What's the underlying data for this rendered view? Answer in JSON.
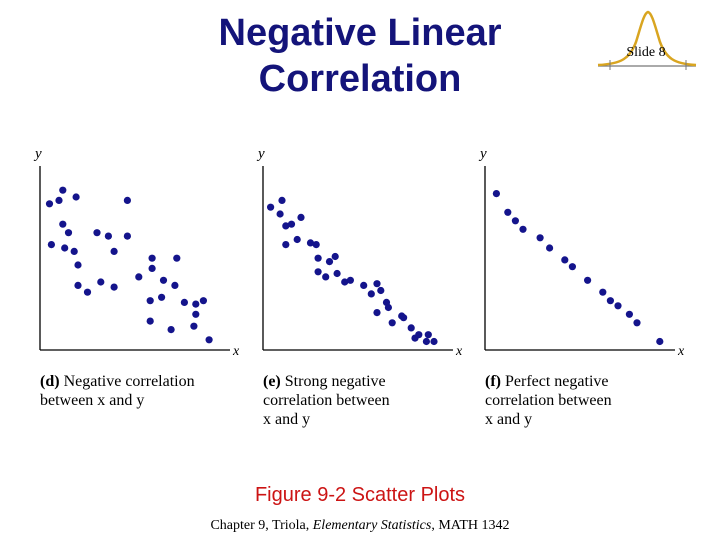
{
  "slide": {
    "title_line1": "Negative Linear",
    "title_line2": "Correlation",
    "badge_label": "Slide 8",
    "figure_caption": "Figure 9-2   Scatter Plots",
    "footer_prefix": "Chapter 9, Triola, ",
    "footer_book": "Elementary Statistics",
    "footer_suffix": ", MATH 1342"
  },
  "colors": {
    "title": "#14147a",
    "dots": "#14148c",
    "caption": "#cc1414",
    "badge_curve": "#d9a520"
  },
  "panels": [
    {
      "tag": "(d)",
      "caption_line1": "Negative correlation",
      "caption_line2": "between x and y",
      "caption_line3": ""
    },
    {
      "tag": "(e)",
      "caption_line1": "Strong negative",
      "caption_line2": "correlation between",
      "caption_line3": "x and y"
    },
    {
      "tag": "(f)",
      "caption_line1": "Perfect negative",
      "caption_line2": "correlation between",
      "caption_line3": "x and y"
    }
  ],
  "chart_data": [
    {
      "type": "scatter",
      "title": "",
      "xlabel": "x",
      "ylabel": "y",
      "xlim": [
        0,
        10
      ],
      "ylim": [
        0,
        10
      ],
      "points": [
        [
          0.5,
          8.6
        ],
        [
          1.0,
          8.8
        ],
        [
          1.2,
          9.4
        ],
        [
          1.9,
          9.0
        ],
        [
          0.6,
          6.2
        ],
        [
          1.2,
          7.4
        ],
        [
          1.5,
          6.9
        ],
        [
          1.3,
          6.0
        ],
        [
          1.8,
          5.8
        ],
        [
          2.0,
          5.0
        ],
        [
          3.0,
          6.9
        ],
        [
          3.6,
          6.7
        ],
        [
          4.6,
          8.8
        ],
        [
          4.6,
          6.7
        ],
        [
          3.9,
          5.8
        ],
        [
          2.0,
          3.8
        ],
        [
          3.2,
          4.0
        ],
        [
          2.5,
          3.4
        ],
        [
          3.9,
          3.7
        ],
        [
          5.9,
          4.8
        ],
        [
          5.9,
          5.4
        ],
        [
          7.2,
          5.4
        ],
        [
          5.2,
          4.3
        ],
        [
          6.5,
          4.1
        ],
        [
          7.1,
          3.8
        ],
        [
          5.8,
          2.9
        ],
        [
          6.4,
          3.1
        ],
        [
          7.6,
          2.8
        ],
        [
          8.2,
          2.7
        ],
        [
          8.6,
          2.9
        ],
        [
          5.8,
          1.7
        ],
        [
          8.1,
          1.4
        ],
        [
          6.9,
          1.2
        ],
        [
          8.2,
          2.1
        ],
        [
          8.9,
          0.6
        ]
      ]
    },
    {
      "type": "scatter",
      "title": "",
      "xlabel": "x",
      "ylabel": "y",
      "xlim": [
        0,
        10
      ],
      "ylim": [
        0,
        10
      ],
      "points": [
        [
          0.4,
          8.4
        ],
        [
          0.9,
          8.0
        ],
        [
          1.0,
          8.8
        ],
        [
          1.2,
          7.3
        ],
        [
          1.5,
          7.4
        ],
        [
          1.2,
          6.2
        ],
        [
          1.8,
          6.5
        ],
        [
          2.0,
          7.8
        ],
        [
          2.8,
          6.2
        ],
        [
          2.5,
          6.3
        ],
        [
          2.9,
          5.4
        ],
        [
          3.5,
          5.2
        ],
        [
          2.9,
          4.6
        ],
        [
          3.3,
          4.3
        ],
        [
          3.9,
          4.5
        ],
        [
          3.8,
          5.5
        ],
        [
          4.3,
          4.0
        ],
        [
          4.6,
          4.1
        ],
        [
          5.3,
          3.8
        ],
        [
          5.7,
          3.3
        ],
        [
          6.0,
          3.9
        ],
        [
          6.2,
          3.5
        ],
        [
          6.5,
          2.8
        ],
        [
          6.6,
          2.5
        ],
        [
          6.0,
          2.2
        ],
        [
          6.8,
          1.6
        ],
        [
          7.3,
          2.0
        ],
        [
          7.4,
          1.9
        ],
        [
          7.8,
          1.3
        ],
        [
          8.0,
          0.7
        ],
        [
          8.2,
          0.9
        ],
        [
          8.7,
          0.9
        ],
        [
          9.0,
          0.5
        ],
        [
          8.6,
          0.5
        ]
      ]
    },
    {
      "type": "scatter",
      "title": "",
      "xlabel": "x",
      "ylabel": "y",
      "xlim": [
        0,
        10
      ],
      "ylim": [
        0,
        10
      ],
      "points": [
        [
          0.6,
          9.2
        ],
        [
          1.2,
          8.1
        ],
        [
          1.6,
          7.6
        ],
        [
          2.0,
          7.1
        ],
        [
          2.9,
          6.6
        ],
        [
          3.4,
          6.0
        ],
        [
          4.2,
          5.3
        ],
        [
          4.6,
          4.9
        ],
        [
          5.4,
          4.1
        ],
        [
          6.2,
          3.4
        ],
        [
          6.6,
          2.9
        ],
        [
          7.0,
          2.6
        ],
        [
          7.6,
          2.1
        ],
        [
          8.0,
          1.6
        ],
        [
          9.2,
          0.5
        ]
      ]
    }
  ]
}
